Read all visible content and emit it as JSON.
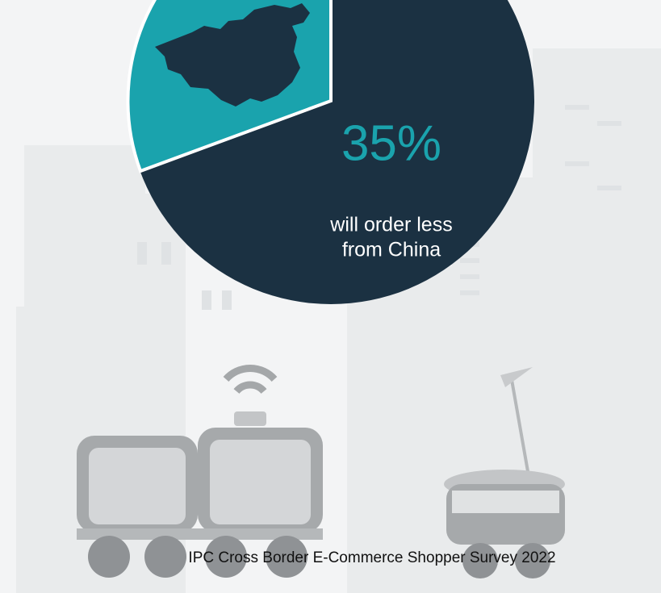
{
  "stat": {
    "value": "35%",
    "caption": [
      "will order less",
      "from China"
    ]
  },
  "source": "IPC Cross Border E-Commerce Shopper Survey 2022"
}
